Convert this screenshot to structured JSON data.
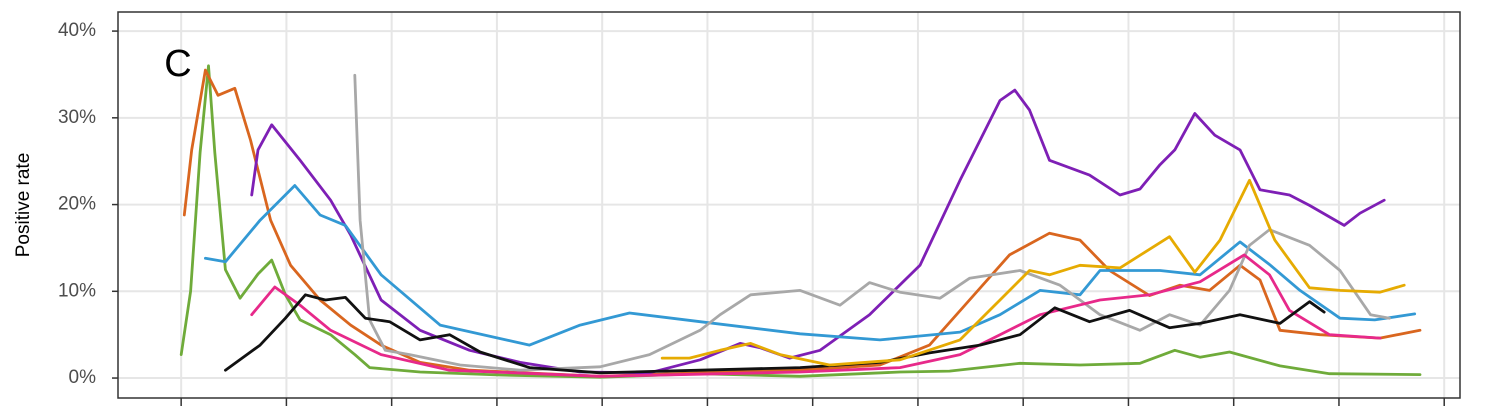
{
  "chart_data": {
    "type": "line",
    "annotation": "C",
    "y_label": "Positive rate",
    "ylim": [
      -2.3,
      42.2
    ],
    "yticks": [
      {
        "value": 0,
        "label": "0%"
      },
      {
        "value": 10,
        "label": "10%"
      },
      {
        "value": 20,
        "label": "20%"
      },
      {
        "value": 30,
        "label": "30%"
      },
      {
        "value": 40,
        "label": "40%"
      }
    ],
    "xlim": [
      -0.6,
      12.15
    ],
    "xticks": [
      0,
      1,
      2,
      3,
      4,
      5,
      6,
      7,
      8,
      9,
      10,
      11,
      12
    ],
    "grid": true,
    "series": [
      {
        "color": "#6fab3a",
        "x": [
          0,
          0.09,
          0.18,
          0.26,
          0.32,
          0.42,
          0.56,
          0.73,
          0.86,
          0.99,
          1.13,
          1.42,
          1.65,
          1.79,
          2.27,
          3.03,
          3.98,
          4.93,
          5.88,
          6.83,
          7.3,
          7.97,
          8.54,
          9.11,
          9.44,
          9.68,
          9.96,
          10.44,
          10.91,
          11.77
        ],
        "values": [
          2.7,
          10,
          26,
          36,
          26,
          12.5,
          9.2,
          12,
          13.6,
          9.6,
          6.7,
          5,
          2.7,
          1.2,
          0.7,
          0.35,
          0.1,
          0.5,
          0.2,
          0.7,
          0.8,
          1.7,
          1.5,
          1.7,
          3.2,
          2.4,
          3,
          1.4,
          0.5,
          0.4
        ]
      },
      {
        "color": "#d9661f",
        "x": [
          0.03,
          0.1,
          0.23,
          0.35,
          0.51,
          0.66,
          0.85,
          1.04,
          1.32,
          1.61,
          1.9,
          2.27,
          2.74,
          3.98,
          4.93,
          5.88,
          6.64,
          7.11,
          7.49,
          7.87,
          8.25,
          8.54,
          8.82,
          9.2,
          9.49,
          9.77,
          10.06,
          10.25,
          10.44,
          10.82,
          11.39,
          11.77
        ],
        "values": [
          18.8,
          26.3,
          35.5,
          32.6,
          33.4,
          27.4,
          18.2,
          13,
          9,
          6.1,
          3.8,
          1.8,
          0.9,
          0.2,
          0.6,
          0.9,
          1.5,
          3.8,
          9,
          14.2,
          16.7,
          15.9,
          12.4,
          9.5,
          10.7,
          10.1,
          13,
          11.3,
          5.5,
          5,
          4.6,
          5.5
        ]
      },
      {
        "color": "#7e1fb5",
        "x": [
          0.67,
          0.73,
          0.86,
          1.13,
          1.42,
          1.61,
          1.9,
          2.27,
          2.74,
          3.22,
          3.79,
          4.45,
          4.93,
          5.31,
          5.5,
          5.78,
          6.07,
          6.54,
          7.02,
          7.4,
          7.78,
          7.92,
          8.06,
          8.25,
          8.63,
          8.92,
          9.11,
          9.3,
          9.44,
          9.63,
          9.82,
          10.06,
          10.25,
          10.53,
          10.72,
          11.05,
          11.2,
          11.43
        ],
        "values": [
          21.1,
          26.3,
          29.2,
          25.1,
          20.5,
          16.5,
          9,
          5.5,
          3.2,
          1.8,
          0.7,
          0.6,
          2.1,
          4,
          3.5,
          2.3,
          3.2,
          7.3,
          13,
          22.8,
          32,
          33.2,
          30.9,
          25.1,
          23.4,
          21.1,
          21.8,
          24.6,
          26.3,
          30.5,
          28,
          26.3,
          21.7,
          21.1,
          19.9,
          17.6,
          19,
          20.5
        ]
      },
      {
        "color": "#3399d4",
        "x": [
          0.23,
          0.42,
          0.75,
          1.08,
          1.32,
          1.56,
          1.9,
          2.46,
          3.31,
          3.79,
          4.26,
          4.93,
          5.88,
          6.64,
          7.4,
          7.78,
          8.16,
          8.54,
          8.73,
          9.3,
          9.68,
          10.06,
          10.35,
          10.63,
          11.01,
          11.34,
          11.72
        ],
        "values": [
          13.8,
          13.4,
          18.2,
          22.2,
          18.8,
          17.6,
          11.9,
          6.1,
          3.8,
          6.1,
          7.5,
          6.5,
          5.1,
          4.4,
          5.3,
          7.3,
          10.1,
          9.6,
          12.4,
          12.4,
          11.9,
          15.7,
          13,
          10.1,
          6.9,
          6.7,
          7.4
        ]
      },
      {
        "color": "#a8a8a8",
        "x": [
          1.65,
          1.7,
          1.79,
          1.94,
          2.17,
          2.65,
          3.22,
          3.98,
          4.45,
          4.93,
          5.12,
          5.41,
          5.88,
          6.26,
          6.54,
          6.83,
          7.21,
          7.49,
          7.97,
          8.35,
          8.73,
          9.11,
          9.39,
          9.68,
          9.96,
          10.15,
          10.34,
          10.72,
          11.01,
          11.3,
          11.48
        ],
        "values": [
          34.9,
          18.2,
          6.7,
          3.2,
          2.7,
          1.5,
          0.9,
          1.3,
          2.7,
          5.5,
          7.3,
          9.6,
          10.1,
          8.4,
          11,
          9.9,
          9.2,
          11.5,
          12.4,
          10.7,
          7.3,
          5.5,
          7.3,
          6.1,
          10.1,
          15.3,
          17.1,
          15.3,
          12.4,
          7.3,
          6.9
        ]
      },
      {
        "color": "#e7298a",
        "x": [
          0.67,
          0.89,
          1.13,
          1.42,
          1.9,
          2.55,
          3.98,
          5.88,
          6.83,
          7.4,
          7.78,
          8.16,
          8.73,
          9.2,
          9.68,
          10.1,
          10.34,
          10.53,
          10.91,
          11.39
        ],
        "values": [
          7.3,
          10.5,
          8.4,
          5.5,
          2.7,
          0.9,
          0.2,
          0.7,
          1.2,
          2.7,
          5,
          7.3,
          9,
          9.6,
          11.1,
          14.2,
          11.9,
          7.8,
          5,
          4.6
        ]
      },
      {
        "color": "#111111",
        "x": [
          0.42,
          0.75,
          0.99,
          1.18,
          1.37,
          1.56,
          1.75,
          1.98,
          2.27,
          2.55,
          2.84,
          3.31,
          3.98,
          4.93,
          5.88,
          6.64,
          7.11,
          7.59,
          7.97,
          8.3,
          8.63,
          9.01,
          9.39,
          9.68,
          10.06,
          10.44,
          10.72,
          10.86
        ],
        "values": [
          0.9,
          3.8,
          6.9,
          9.6,
          9,
          9.3,
          6.9,
          6.5,
          4.4,
          5,
          3,
          1.2,
          0.6,
          0.9,
          1.2,
          1.8,
          2.9,
          3.8,
          5,
          8.1,
          6.5,
          7.8,
          5.8,
          6.3,
          7.3,
          6.3,
          8.8,
          7.6
        ]
      },
      {
        "color": "#e6ab02",
        "x": [
          4.57,
          4.83,
          5.12,
          5.41,
          5.69,
          6.16,
          6.83,
          7.4,
          7.78,
          8.06,
          8.25,
          8.54,
          8.92,
          9.39,
          9.63,
          9.87,
          10.15,
          10.39,
          10.72,
          11.01,
          11.39,
          11.62
        ],
        "values": [
          2.3,
          2.3,
          3.2,
          4,
          2.7,
          1.5,
          2.1,
          4.4,
          9,
          12.4,
          11.9,
          13,
          12.7,
          16.3,
          12.2,
          15.9,
          22.8,
          15.9,
          10.4,
          10.1,
          9.9,
          10.7
        ]
      }
    ]
  }
}
